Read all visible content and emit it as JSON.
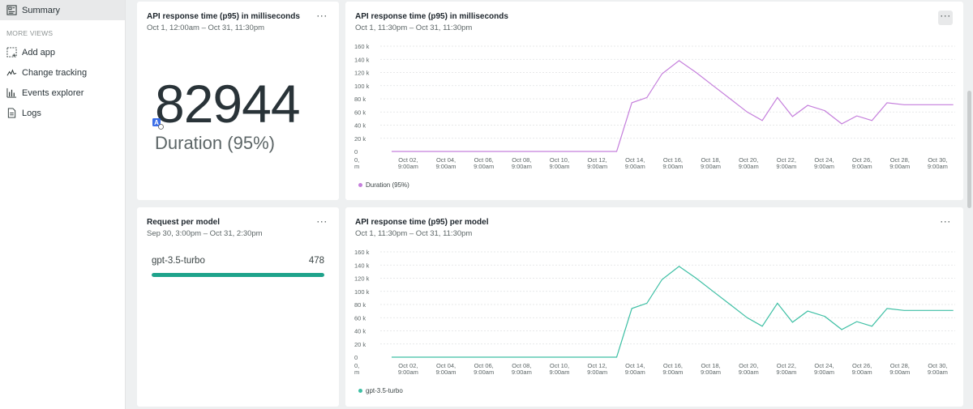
{
  "sidebar": {
    "active_item": "Summary",
    "section_label": "MORE VIEWS",
    "items": [
      {
        "label": "Add app",
        "icon": "add-app-icon"
      },
      {
        "label": "Change tracking",
        "icon": "change-tracking-icon"
      },
      {
        "label": "Events explorer",
        "icon": "events-explorer-icon"
      },
      {
        "label": "Logs",
        "icon": "logs-icon"
      }
    ]
  },
  "cards": {
    "billboard": {
      "title": "API response time (p95) in milliseconds",
      "subtitle": "Oct 1, 12:00am – Oct 31, 11:30pm",
      "value": "82944",
      "label": "Duration (95%)"
    },
    "request_per_model": {
      "title": "Request per model",
      "subtitle": "Sep 30, 3:00pm – Oct 31, 2:30pm",
      "model": "gpt-3.5-turbo",
      "count": "478",
      "fill_fraction": 1.0,
      "color": "#1ea38b"
    },
    "line_duration": {
      "title": "API response time (p95) in milliseconds",
      "subtitle": "Oct 1, 11:30pm – Oct 31, 11:30pm",
      "legend": "Duration (95%)",
      "color": "#c57fdc"
    },
    "line_model": {
      "title": "API response time (p95) per model",
      "subtitle": "Oct 1, 11:30pm – Oct 31, 11:30pm",
      "legend": "gpt-3.5-turbo",
      "color": "#3dbfa4"
    }
  },
  "chart_data": [
    {
      "type": "line",
      "y_ticks": [
        "160 k",
        "140 k",
        "120 k",
        "100 k",
        "80 k",
        "60 k",
        "40 k",
        "20 k",
        "0"
      ],
      "ylim": [
        0,
        160000
      ],
      "x_tick_labels": [
        [
          "0,",
          "m"
        ],
        [
          "Oct 02,",
          "9:00am"
        ],
        [
          "Oct 04,",
          "9:00am"
        ],
        [
          "Oct 06,",
          "9:00am"
        ],
        [
          "Oct 08,",
          "9:00am"
        ],
        [
          "Oct 10,",
          "9:00am"
        ],
        [
          "Oct 12,",
          "9:00am"
        ],
        [
          "Oct 14,",
          "9:00am"
        ],
        [
          "Oct 16,",
          "9:00am"
        ],
        [
          "Oct 18,",
          "9:00am"
        ],
        [
          "Oct 20,",
          "9:00am"
        ],
        [
          "Oct 22,",
          "9:00am"
        ],
        [
          "Oct 24,",
          "9:00am"
        ],
        [
          "Oct 26,",
          "9:00am"
        ],
        [
          "Oct 28,",
          "9:00am"
        ],
        [
          "Oct 30,",
          "9:00am"
        ]
      ],
      "series": [
        {
          "name": "Duration (95%)",
          "x": [
            1.5,
            13.4,
            14.2,
            15.0,
            15.8,
            16.7,
            17.6,
            18.5,
            19.4,
            20.3,
            21.1,
            21.9,
            22.7,
            23.5,
            24.4,
            25.3,
            26.1,
            26.9,
            27.7,
            28.6,
            29.4,
            30.3,
            31.2
          ],
          "y": [
            0,
            0,
            74000,
            82000,
            118000,
            138000,
            120000,
            100000,
            80000,
            60000,
            47000,
            82000,
            53000,
            70000,
            62000,
            42000,
            54000,
            47000,
            74000,
            71000,
            71000,
            71000,
            71000
          ]
        }
      ]
    },
    {
      "type": "line",
      "y_ticks": [
        "160 k",
        "140 k",
        "120 k",
        "100 k",
        "80 k",
        "60 k",
        "40 k",
        "20 k",
        "0"
      ],
      "ylim": [
        0,
        160000
      ],
      "x_tick_labels": [
        [
          "0,",
          "m"
        ],
        [
          "Oct 02,",
          "9:00am"
        ],
        [
          "Oct 04,",
          "9:00am"
        ],
        [
          "Oct 06,",
          "9:00am"
        ],
        [
          "Oct 08,",
          "9:00am"
        ],
        [
          "Oct 10,",
          "9:00am"
        ],
        [
          "Oct 12,",
          "9:00am"
        ],
        [
          "Oct 14,",
          "9:00am"
        ],
        [
          "Oct 16,",
          "9:00am"
        ],
        [
          "Oct 18,",
          "9:00am"
        ],
        [
          "Oct 20,",
          "9:00am"
        ],
        [
          "Oct 22,",
          "9:00am"
        ],
        [
          "Oct 24,",
          "9:00am"
        ],
        [
          "Oct 26,",
          "9:00am"
        ],
        [
          "Oct 28,",
          "9:00am"
        ],
        [
          "Oct 30,",
          "9:00am"
        ]
      ],
      "series": [
        {
          "name": "gpt-3.5-turbo",
          "x": [
            1.5,
            13.4,
            14.2,
            15.0,
            15.8,
            16.7,
            17.6,
            18.5,
            19.4,
            20.3,
            21.1,
            21.9,
            22.7,
            23.5,
            24.4,
            25.3,
            26.1,
            26.9,
            27.7,
            28.6,
            29.4,
            30.3,
            31.2
          ],
          "y": [
            0,
            0,
            74000,
            82000,
            118000,
            138000,
            120000,
            100000,
            80000,
            60000,
            47000,
            82000,
            53000,
            70000,
            62000,
            42000,
            54000,
            47000,
            74000,
            71000,
            71000,
            71000,
            71000
          ]
        }
      ]
    }
  ]
}
